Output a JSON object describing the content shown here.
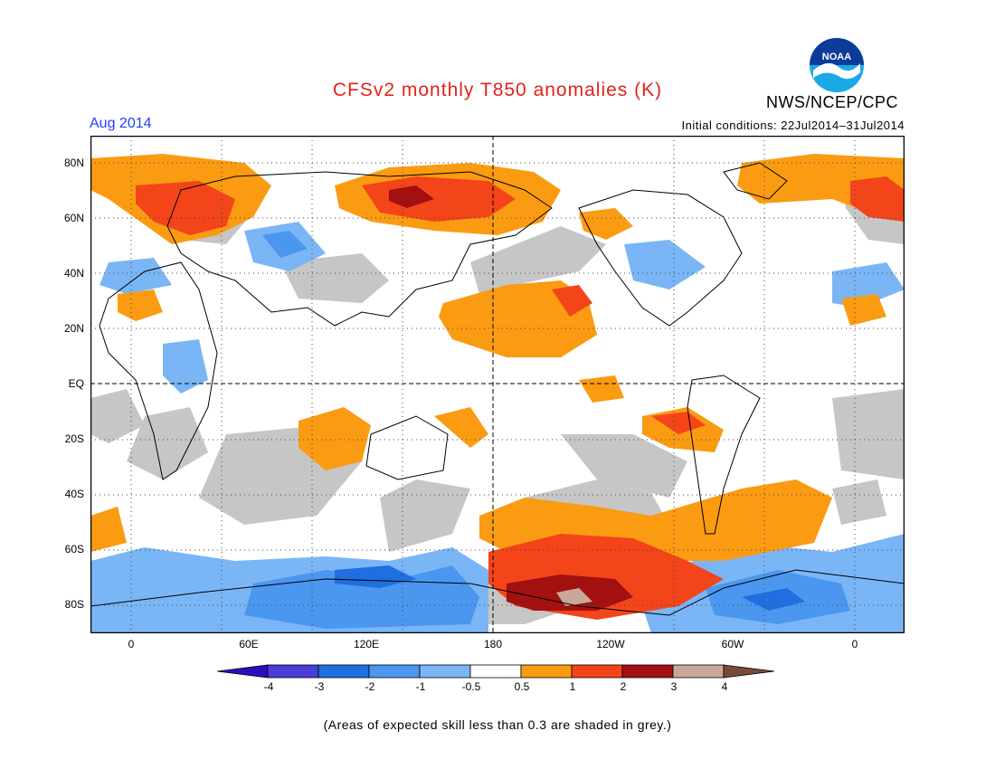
{
  "title": "CFSv2 monthly T850 anomalies (K)",
  "period": "Aug 2014",
  "initial_conditions": "Initial conditions: 22Jul2014–31Jul2014",
  "organization": "NWS/NCEP/CPC",
  "logo_text": "NOAA",
  "footnote": "(Areas of expected skill less than 0.3 are shaded in grey.)",
  "lat_labels": [
    "80N",
    "60N",
    "40N",
    "20N",
    "EQ",
    "20S",
    "40S",
    "60S",
    "80S"
  ],
  "lon_labels": [
    "0",
    "60E",
    "120E",
    "180",
    "120W",
    "60W",
    "0"
  ],
  "colorbar": {
    "labels": [
      "-4",
      "-3",
      "-2",
      "-1",
      "-0.5",
      "0.5",
      "1",
      "2",
      "3",
      "4"
    ],
    "colors": [
      "#2a0fbf",
      "#4a3ed8",
      "#1f6fe0",
      "#4b97ef",
      "#7ab6f6",
      "#ffffff",
      "#fa9b12",
      "#f34519",
      "#a31010",
      "#c8a89a",
      "#7a4a38"
    ]
  },
  "colors": {
    "ocean": "#ffffff",
    "skill_grey": "#c6c6c6",
    "title": "#e0231b",
    "period": "#1f3fff"
  }
}
